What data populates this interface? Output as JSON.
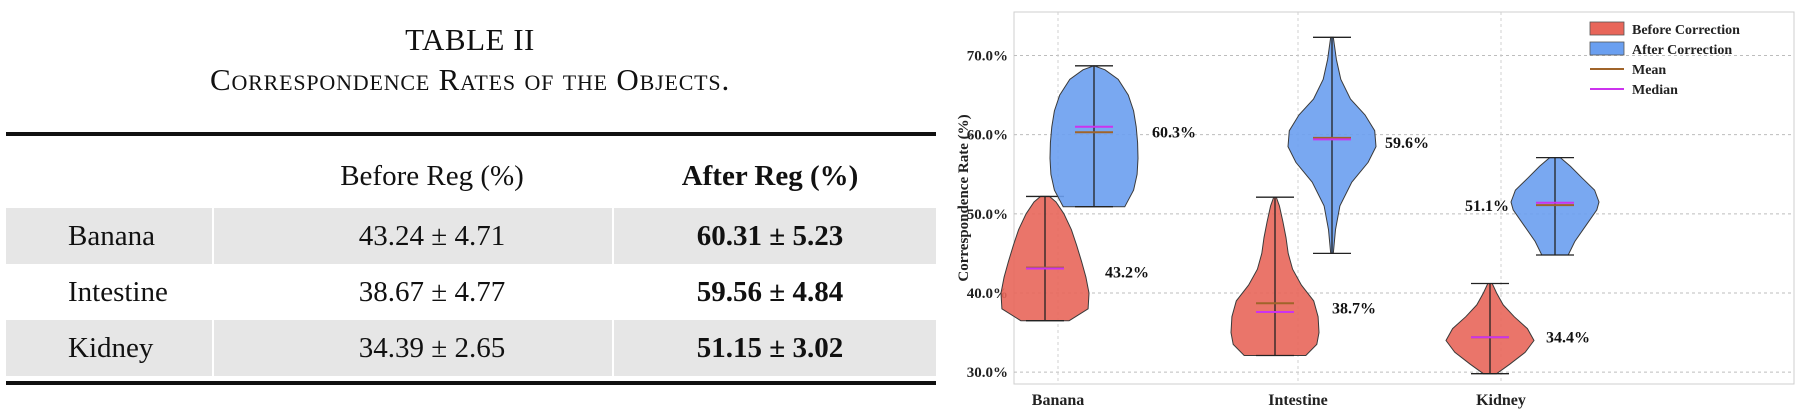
{
  "table": {
    "caption_line1": "TABLE II",
    "caption_line2": "Correspondence Rates of the Objects.",
    "headers": {
      "empty": "",
      "before": "Before Reg (%)",
      "after": "After Reg (%)"
    },
    "rows": [
      {
        "name": "Banana",
        "before": "43.24 ± 4.71",
        "after": "60.31 ± 5.23"
      },
      {
        "name": "Intestine",
        "before": "38.67 ± 4.77",
        "after": "59.56 ± 4.84"
      },
      {
        "name": "Kidney",
        "before": "34.39 ± 2.65",
        "after": "51.15 ± 3.02"
      }
    ]
  },
  "chart_data": {
    "type": "violin",
    "ylabel": "Correspondence Rate (%)",
    "ylim": [
      28.5,
      75.5
    ],
    "yticks": [
      30,
      40,
      50,
      60,
      70
    ],
    "ytick_labels": [
      "30.0%",
      "40.0%",
      "50.0%",
      "60.0%",
      "70.0%"
    ],
    "categories": [
      "Banana",
      "Intestine",
      "Kidney"
    ],
    "grid": true,
    "legend_position": "top-right",
    "legend": [
      {
        "label": "Before Correction",
        "kind": "patch",
        "color": "#e8665a"
      },
      {
        "label": "After Correction",
        "kind": "patch",
        "color": "#6a9ff0"
      },
      {
        "label": "Mean",
        "kind": "line",
        "color": "#a0642a"
      },
      {
        "label": "Median",
        "kind": "line",
        "color": "#cc33ee"
      }
    ],
    "colors": {
      "before": "#e8665a",
      "after": "#6a9ff0",
      "edge": "#3a3a3a",
      "mean": "#a0642a",
      "median": "#cc33ee"
    },
    "series": [
      {
        "name": "Before Correction",
        "violins": [
          {
            "category": "Banana",
            "min": 36.5,
            "max": 52.2,
            "mean": 43.2,
            "median": 43.1,
            "label": "43.2%",
            "profile": [
              [
                36.5,
                0.55
              ],
              [
                38,
                0.98
              ],
              [
                40,
                1.0
              ],
              [
                42,
                0.93
              ],
              [
                44,
                0.83
              ],
              [
                46,
                0.72
              ],
              [
                48,
                0.6
              ],
              [
                50,
                0.43
              ],
              [
                51.5,
                0.25
              ],
              [
                52.2,
                0.1
              ]
            ]
          },
          {
            "category": "Intestine",
            "min": 32.1,
            "max": 52.1,
            "mean": 38.7,
            "median": 37.6,
            "label": "38.7%",
            "profile": [
              [
                32.1,
                0.7
              ],
              [
                33.5,
                0.95
              ],
              [
                35,
                1.0
              ],
              [
                37,
                0.98
              ],
              [
                39,
                0.88
              ],
              [
                41,
                0.6
              ],
              [
                43,
                0.4
              ],
              [
                45,
                0.3
              ],
              [
                47,
                0.25
              ],
              [
                49,
                0.18
              ],
              [
                51,
                0.1
              ],
              [
                52.1,
                0.03
              ]
            ]
          },
          {
            "category": "Kidney",
            "min": 29.8,
            "max": 41.2,
            "mean": 34.4,
            "median": 34.4,
            "label": "34.4%",
            "profile": [
              [
                29.8,
                0.15
              ],
              [
                31,
                0.45
              ],
              [
                32.5,
                0.8
              ],
              [
                34,
                1.0
              ],
              [
                35.5,
                0.85
              ],
              [
                37,
                0.55
              ],
              [
                38.5,
                0.3
              ],
              [
                40,
                0.15
              ],
              [
                41.2,
                0.05
              ]
            ]
          }
        ]
      },
      {
        "name": "After Correction",
        "violins": [
          {
            "category": "Banana",
            "min": 50.9,
            "max": 68.7,
            "mean": 60.3,
            "median": 61.0,
            "label": "60.3%",
            "profile": [
              [
                50.9,
                0.7
              ],
              [
                53,
                0.9
              ],
              [
                55,
                0.98
              ],
              [
                57,
                1.0
              ],
              [
                59,
                0.99
              ],
              [
                61,
                0.96
              ],
              [
                63,
                0.9
              ],
              [
                65,
                0.78
              ],
              [
                67,
                0.55
              ],
              [
                68.2,
                0.25
              ],
              [
                68.7,
                0.0
              ]
            ]
          },
          {
            "category": "Intestine",
            "min": 45.0,
            "max": 72.3,
            "mean": 59.6,
            "median": 59.4,
            "label": "59.6%",
            "profile": [
              [
                45,
                0.03
              ],
              [
                48,
                0.08
              ],
              [
                51,
                0.18
              ],
              [
                54,
                0.45
              ],
              [
                56.5,
                0.82
              ],
              [
                58.5,
                1.0
              ],
              [
                60.5,
                0.97
              ],
              [
                62.5,
                0.75
              ],
              [
                64.5,
                0.42
              ],
              [
                67,
                0.2
              ],
              [
                69.5,
                0.1
              ],
              [
                72.3,
                0.03
              ]
            ]
          },
          {
            "category": "Kidney",
            "min": 44.8,
            "max": 57.1,
            "mean": 51.1,
            "median": 51.4,
            "label": "51.1%",
            "profile": [
              [
                44.8,
                0.3
              ],
              [
                46.5,
                0.45
              ],
              [
                48.5,
                0.7
              ],
              [
                50.5,
                0.95
              ],
              [
                51.5,
                1.0
              ],
              [
                53,
                0.9
              ],
              [
                54.5,
                0.62
              ],
              [
                56,
                0.35
              ],
              [
                57.1,
                0.12
              ]
            ]
          }
        ]
      }
    ]
  }
}
